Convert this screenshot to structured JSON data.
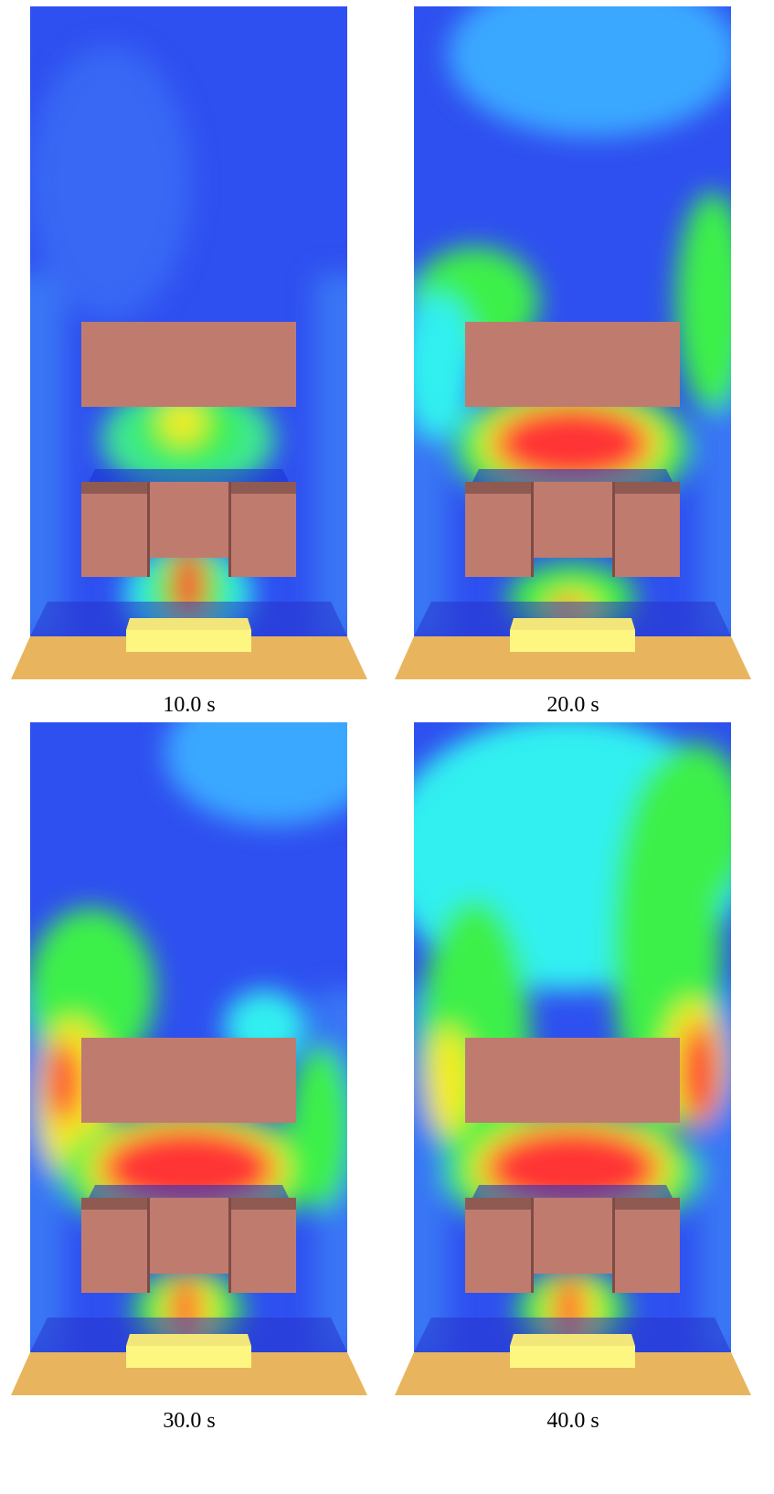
{
  "panels": [
    {
      "caption": "10.0 s"
    },
    {
      "caption": "20.0 s"
    },
    {
      "caption": "30.0 s"
    },
    {
      "caption": "40.0 s"
    }
  ]
}
